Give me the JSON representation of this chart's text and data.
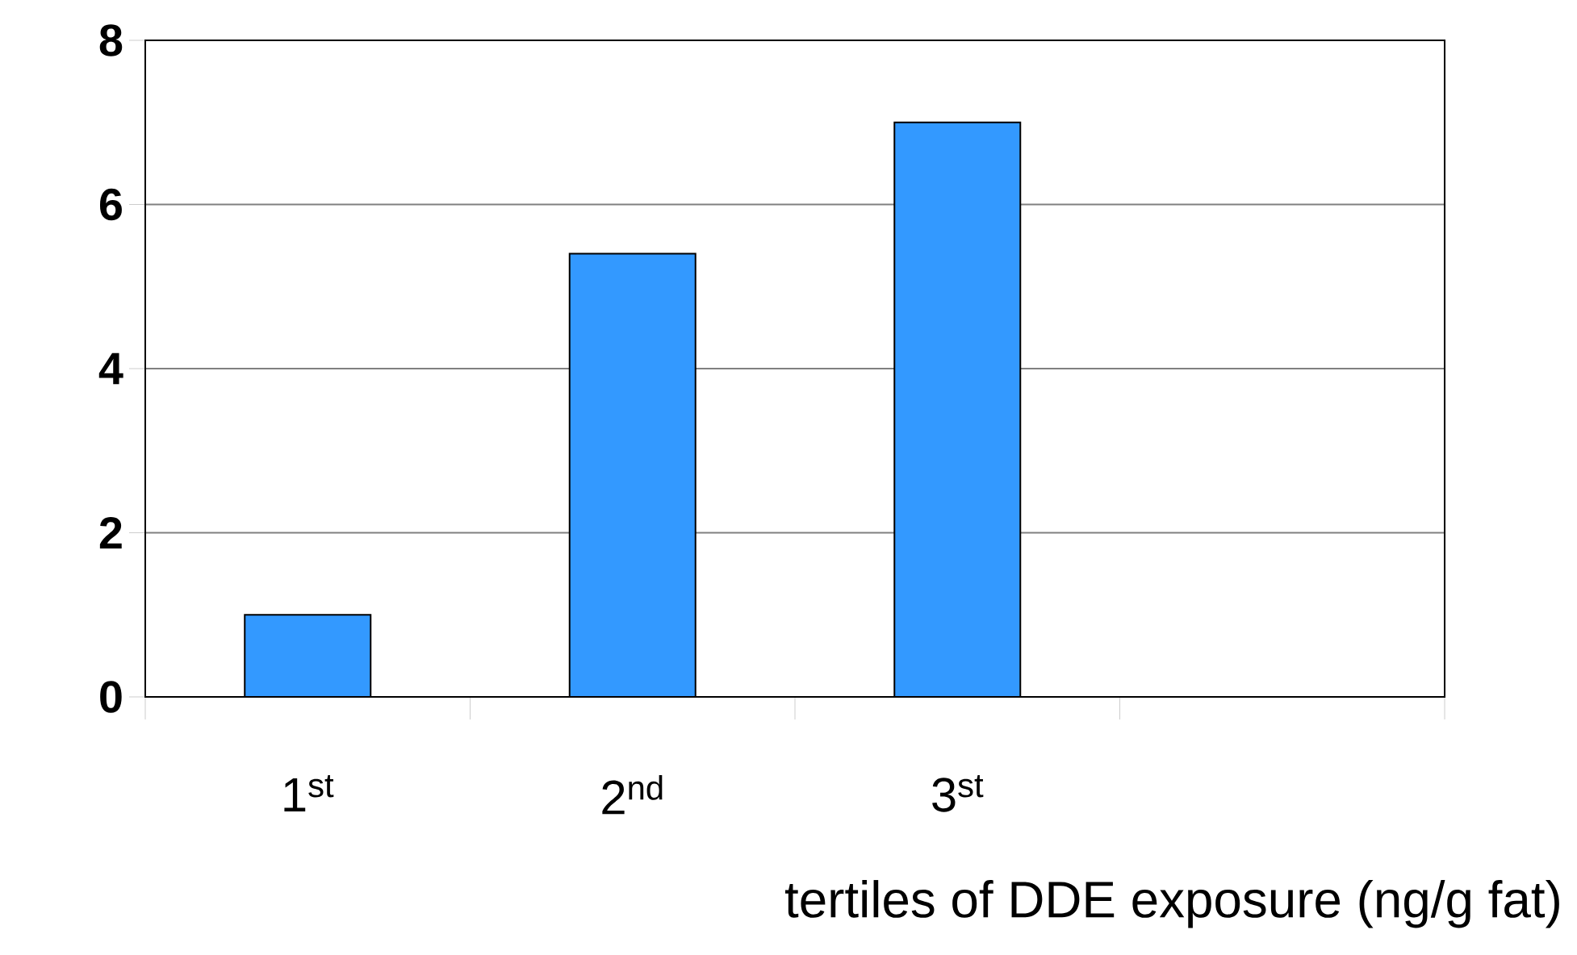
{
  "chart_data": {
    "type": "bar",
    "xlabel": "tertiles of DDE exposure (ng/g fat)",
    "categories": [
      "1$^{st}$",
      "2$^{nd}$",
      "3$^{st}$",
      null
    ],
    "values": [
      1,
      5.4,
      7,
      null
    ],
    "color": "#3399ff",
    "ylim": [
      0,
      8
    ],
    "yticks": [
      0,
      2,
      4,
      6,
      8
    ],
    "grid": "y"
  }
}
